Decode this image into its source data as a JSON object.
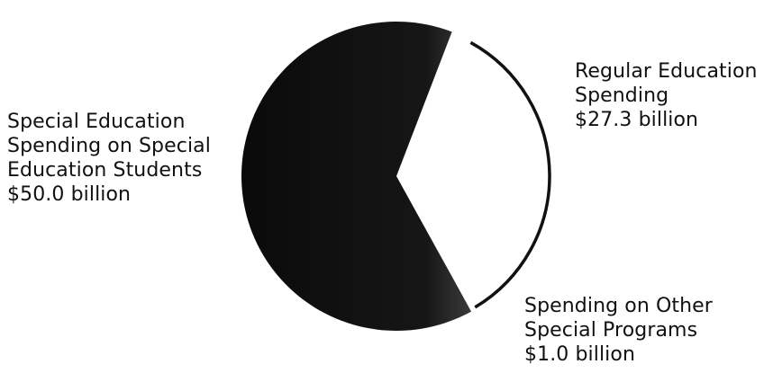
{
  "chart_data": {
    "type": "pie",
    "title": "",
    "unit": "billion USD",
    "slices": [
      {
        "name": "Special Education Spending on Special Education Students",
        "value": 50.0,
        "label_lines": [
          "Special Education",
          "Spending on Special",
          "Education Students",
          "$50.0 billion"
        ],
        "color": "#0a0a0a"
      },
      {
        "name": "Regular Education Spending",
        "value": 27.3,
        "label_lines": [
          "Regular Education",
          "Spending",
          "$27.3 billion"
        ],
        "color": "#ffffff"
      },
      {
        "name": "Spending on Other Special Programs",
        "value": 1.0,
        "label_lines": [
          "Spending on Other",
          "Special Programs",
          "$1.0 billion"
        ],
        "color": "#ffffff"
      }
    ]
  }
}
